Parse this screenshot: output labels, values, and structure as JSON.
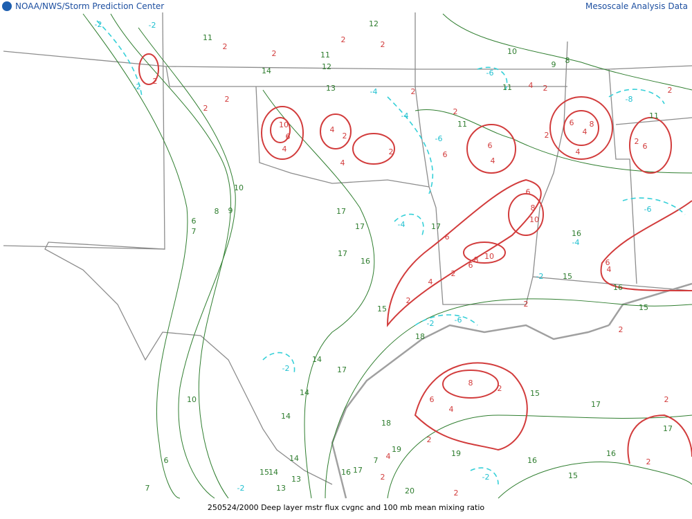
{
  "header": {
    "left": "NOAA/NWS/Storm Prediction Center",
    "right": "Mesoscale Analysis Data"
  },
  "footer": {
    "caption": "250524/2000 Deep layer mstr flux cvgnc and 100 mb mean mixing ratio"
  },
  "contours": {
    "mixing_ratio": {
      "labels": [
        11,
        11,
        12,
        14,
        13,
        10,
        11,
        11,
        11,
        10,
        8,
        9,
        6,
        7,
        17,
        17,
        17,
        16,
        17,
        16,
        15,
        16,
        15,
        15,
        18,
        14,
        14,
        14,
        17,
        15,
        17,
        17,
        16,
        10,
        6,
        7,
        18,
        19,
        19,
        16,
        15,
        14,
        13,
        15,
        14,
        17,
        16,
        7,
        20,
        13,
        12,
        8,
        9
      ]
    },
    "convergence": {
      "labels": [
        2,
        2,
        2,
        2,
        2,
        10,
        6,
        4,
        2,
        2,
        4,
        4,
        2,
        2,
        6,
        6,
        4,
        2,
        2,
        4,
        2,
        6,
        8,
        4,
        4,
        2,
        2,
        2,
        6,
        10,
        8,
        6,
        10,
        8,
        6,
        6,
        4,
        2,
        2,
        2,
        6,
        4,
        2,
        8,
        6,
        4,
        2,
        2,
        2,
        2,
        2,
        4,
        2
      ]
    },
    "divergence": {
      "labels": [
        -2,
        -2,
        -2,
        -4,
        -6,
        -4,
        -2,
        -6,
        -2,
        -6,
        -4,
        -2,
        -2,
        -2,
        -6,
        -8,
        -4
      ]
    }
  }
}
